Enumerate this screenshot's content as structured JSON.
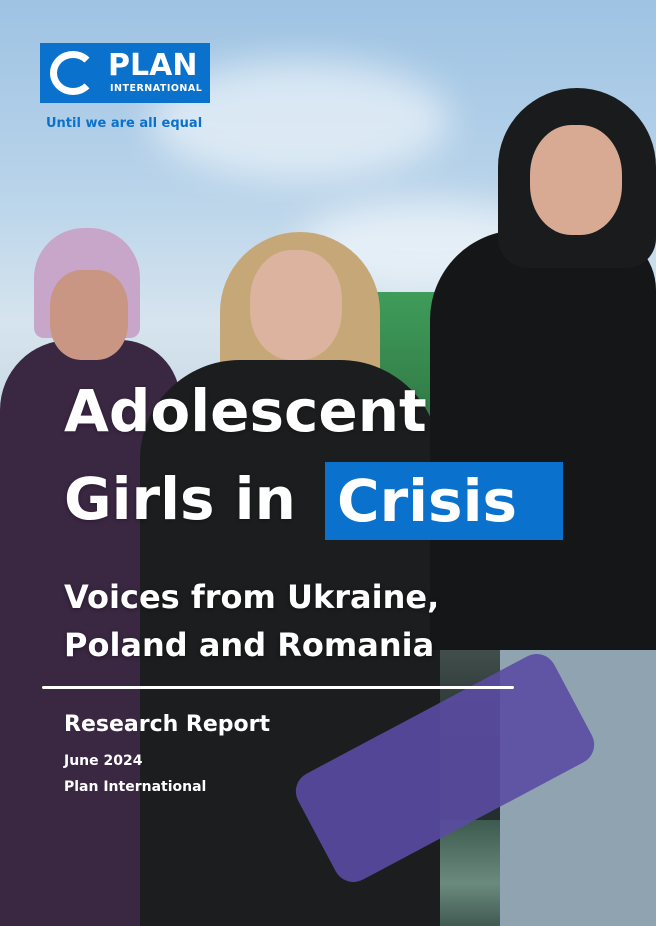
{
  "logo": {
    "name": "PLAN",
    "subname": "INTERNATIONAL"
  },
  "tagline": "Until we are all equal",
  "title": {
    "line1": "Adolescent",
    "line2": "Girls in",
    "highlight": "Crisis"
  },
  "subtitle": {
    "line1": "Voices from Ukraine,",
    "line2": "Poland and Romania"
  },
  "report_type": "Research Report",
  "date": "June 2024",
  "publisher": "Plan International",
  "colors": {
    "brand_blue": "#0a72cc",
    "text": "#ffffff"
  }
}
